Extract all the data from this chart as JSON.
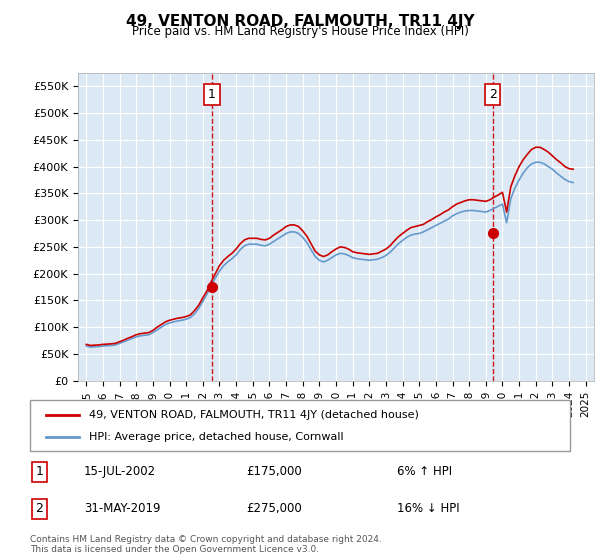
{
  "title": "49, VENTON ROAD, FALMOUTH, TR11 4JY",
  "subtitle": "Price paid vs. HM Land Registry's House Price Index (HPI)",
  "ylabel_ticks": [
    "£0",
    "£50K",
    "£100K",
    "£150K",
    "£200K",
    "£250K",
    "£300K",
    "£350K",
    "£400K",
    "£450K",
    "£500K",
    "£550K"
  ],
  "ytick_values": [
    0,
    50000,
    100000,
    150000,
    200000,
    250000,
    300000,
    350000,
    400000,
    450000,
    500000,
    550000
  ],
  "ylim": [
    0,
    575000
  ],
  "xlim_start": 1994.5,
  "xlim_end": 2025.5,
  "background_color": "#dce9f5",
  "plot_bg_color": "#dce9f5",
  "grid_color": "#ffffff",
  "red_line_color": "#cc0000",
  "blue_line_color": "#6699cc",
  "marker1_x": 2002.54,
  "marker1_y": 175000,
  "marker2_x": 2019.42,
  "marker2_y": 275000,
  "marker_color": "#cc0000",
  "dashed_line_color": "#cc0000",
  "legend_label_red": "49, VENTON ROAD, FALMOUTH, TR11 4JY (detached house)",
  "legend_label_blue": "HPI: Average price, detached house, Cornwall",
  "note1_label": "1",
  "note1_date": "15-JUL-2002",
  "note1_price": "£175,000",
  "note1_hpi": "6% ↑ HPI",
  "note2_label": "2",
  "note2_date": "31-MAY-2019",
  "note2_price": "£275,000",
  "note2_hpi": "16% ↓ HPI",
  "footer": "Contains HM Land Registry data © Crown copyright and database right 2024.\nThis data is licensed under the Open Government Licence v3.0.",
  "hpi_data": {
    "years": [
      1995,
      1995.25,
      1995.5,
      1995.75,
      1996,
      1996.25,
      1996.5,
      1996.75,
      1997,
      1997.25,
      1997.5,
      1997.75,
      1998,
      1998.25,
      1998.5,
      1998.75,
      1999,
      1999.25,
      1999.5,
      1999.75,
      2000,
      2000.25,
      2000.5,
      2000.75,
      2001,
      2001.25,
      2001.5,
      2001.75,
      2002,
      2002.25,
      2002.5,
      2002.75,
      2003,
      2003.25,
      2003.5,
      2003.75,
      2004,
      2004.25,
      2004.5,
      2004.75,
      2005,
      2005.25,
      2005.5,
      2005.75,
      2006,
      2006.25,
      2006.5,
      2006.75,
      2007,
      2007.25,
      2007.5,
      2007.75,
      2008,
      2008.25,
      2008.5,
      2008.75,
      2009,
      2009.25,
      2009.5,
      2009.75,
      2010,
      2010.25,
      2010.5,
      2010.75,
      2011,
      2011.25,
      2011.5,
      2011.75,
      2012,
      2012.25,
      2012.5,
      2012.75,
      2013,
      2013.25,
      2013.5,
      2013.75,
      2014,
      2014.25,
      2014.5,
      2014.75,
      2015,
      2015.25,
      2015.5,
      2015.75,
      2016,
      2016.25,
      2016.5,
      2016.75,
      2017,
      2017.25,
      2017.5,
      2017.75,
      2018,
      2018.25,
      2018.5,
      2018.75,
      2019,
      2019.25,
      2019.5,
      2019.75,
      2020,
      2020.25,
      2020.5,
      2020.75,
      2021,
      2021.25,
      2021.5,
      2021.75,
      2022,
      2022.25,
      2022.5,
      2022.75,
      2023,
      2023.25,
      2023.5,
      2023.75,
      2024,
      2024.25
    ],
    "values": [
      65000,
      63000,
      63500,
      64000,
      65000,
      65500,
      66000,
      67000,
      70000,
      73000,
      76000,
      79000,
      82000,
      84000,
      85000,
      86000,
      90000,
      95000,
      100000,
      105000,
      108000,
      110000,
      112000,
      113000,
      115000,
      118000,
      125000,
      135000,
      148000,
      162000,
      178000,
      192000,
      205000,
      215000,
      222000,
      228000,
      235000,
      245000,
      252000,
      255000,
      255000,
      255000,
      253000,
      252000,
      255000,
      260000,
      265000,
      270000,
      275000,
      278000,
      278000,
      275000,
      268000,
      258000,
      245000,
      232000,
      225000,
      222000,
      225000,
      230000,
      235000,
      238000,
      237000,
      234000,
      230000,
      228000,
      227000,
      226000,
      225000,
      226000,
      227000,
      230000,
      234000,
      240000,
      248000,
      256000,
      262000,
      268000,
      272000,
      274000,
      275000,
      278000,
      282000,
      286000,
      290000,
      294000,
      298000,
      302000,
      308000,
      312000,
      315000,
      317000,
      318000,
      318000,
      317000,
      316000,
      315000,
      318000,
      322000,
      326000,
      330000,
      295000,
      340000,
      360000,
      375000,
      388000,
      398000,
      405000,
      408000,
      408000,
      405000,
      400000,
      395000,
      388000,
      382000,
      376000,
      372000,
      370000
    ]
  },
  "red_data": {
    "years": [
      1995,
      1995.25,
      1995.5,
      1995.75,
      1996,
      1996.25,
      1996.5,
      1996.75,
      1997,
      1997.25,
      1997.5,
      1997.75,
      1998,
      1998.25,
      1998.5,
      1998.75,
      1999,
      1999.25,
      1999.5,
      1999.75,
      2000,
      2000.25,
      2000.5,
      2000.75,
      2001,
      2001.25,
      2001.5,
      2001.75,
      2002,
      2002.25,
      2002.5,
      2002.75,
      2003,
      2003.25,
      2003.5,
      2003.75,
      2004,
      2004.25,
      2004.5,
      2004.75,
      2005,
      2005.25,
      2005.5,
      2005.75,
      2006,
      2006.25,
      2006.5,
      2006.75,
      2007,
      2007.25,
      2007.5,
      2007.75,
      2008,
      2008.25,
      2008.5,
      2008.75,
      2009,
      2009.25,
      2009.5,
      2009.75,
      2010,
      2010.25,
      2010.5,
      2010.75,
      2011,
      2011.25,
      2011.5,
      2011.75,
      2012,
      2012.25,
      2012.5,
      2012.75,
      2013,
      2013.25,
      2013.5,
      2013.75,
      2014,
      2014.25,
      2014.5,
      2014.75,
      2015,
      2015.25,
      2015.5,
      2015.75,
      2016,
      2016.25,
      2016.5,
      2016.75,
      2017,
      2017.25,
      2017.5,
      2017.75,
      2018,
      2018.25,
      2018.5,
      2018.75,
      2019,
      2019.25,
      2019.5,
      2019.75,
      2020,
      2020.25,
      2020.5,
      2020.75,
      2021,
      2021.25,
      2021.5,
      2021.75,
      2022,
      2022.25,
      2022.5,
      2022.75,
      2023,
      2023.25,
      2023.5,
      2023.75,
      2024,
      2024.25
    ],
    "values": [
      68000,
      66000,
      66500,
      67000,
      68000,
      68500,
      69000,
      70000,
      73000,
      76000,
      79500,
      82500,
      86000,
      88000,
      89000,
      90000,
      94000,
      100000,
      105000,
      110000,
      113000,
      115000,
      117000,
      118000,
      120000,
      123000,
      131000,
      141000,
      155000,
      168000,
      185000,
      200000,
      215000,
      225000,
      232000,
      238000,
      246000,
      256000,
      263000,
      266000,
      266000,
      266000,
      264000,
      263000,
      266000,
      272000,
      277000,
      282000,
      288000,
      291000,
      291000,
      288000,
      280000,
      270000,
      256000,
      242000,
      235000,
      232000,
      235000,
      241000,
      246000,
      250000,
      249000,
      246000,
      241000,
      239000,
      238000,
      237000,
      236000,
      237000,
      238000,
      242000,
      246000,
      252000,
      261000,
      269000,
      275000,
      281000,
      286000,
      288000,
      290000,
      292000,
      297000,
      301000,
      306000,
      310000,
      315000,
      319000,
      325000,
      330000,
      333000,
      336000,
      338000,
      338000,
      337000,
      336000,
      335000,
      338000,
      343000,
      347000,
      352000,
      315000,
      362000,
      383000,
      400000,
      413000,
      423000,
      432000,
      436000,
      436000,
      432000,
      427000,
      420000,
      413000,
      407000,
      400000,
      396000,
      395000
    ]
  }
}
